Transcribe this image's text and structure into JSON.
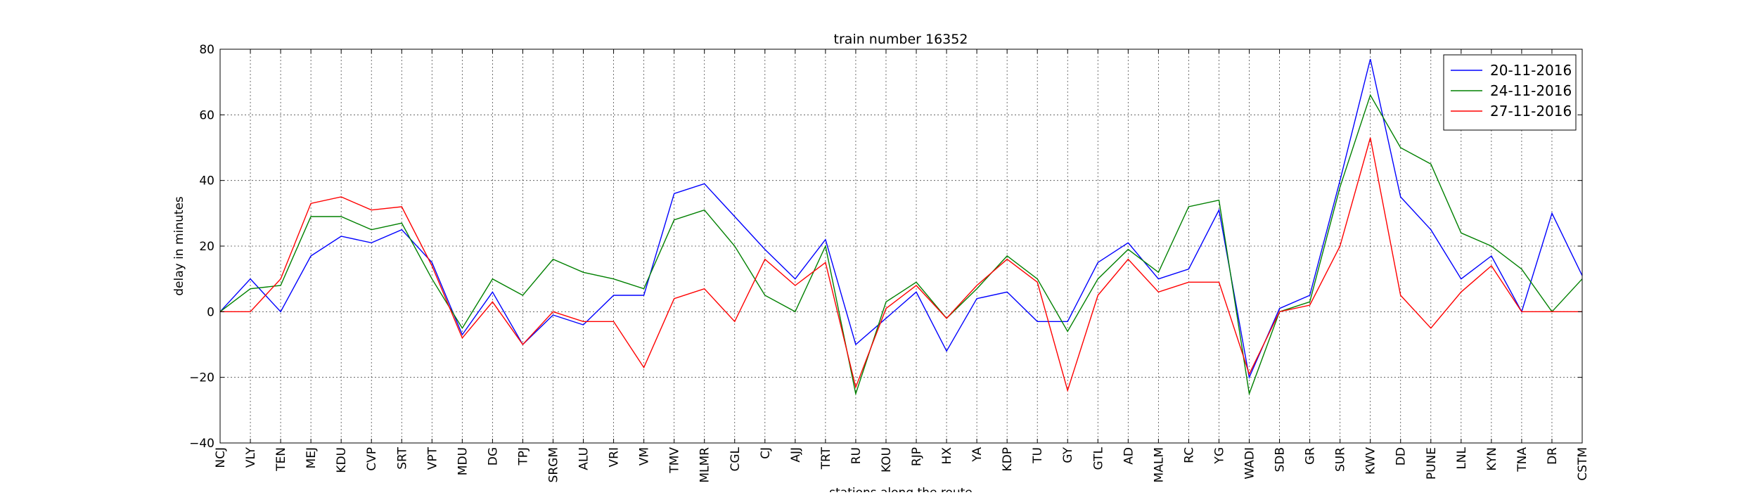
{
  "chart_data": {
    "type": "line",
    "title": "train number 16352",
    "xlabel": "stations along the route",
    "ylabel": "delay in minutes",
    "ylim": [
      -40,
      80
    ],
    "yticks": [
      -40,
      -20,
      0,
      20,
      40,
      60,
      80
    ],
    "grid": true,
    "legend_position": "top-right",
    "categories": [
      "NCJ",
      "VLY",
      "TEN",
      "MEJ",
      "KDU",
      "CVP",
      "SRT",
      "VPT",
      "MDU",
      "DG",
      "TPJ",
      "SRGM",
      "ALU",
      "VRI",
      "VM",
      "TMV",
      "MLMR",
      "CGL",
      "CJ",
      "AJJ",
      "TRT",
      "RU",
      "KOU",
      "RJP",
      "HX",
      "YA",
      "KDP",
      "TU",
      "GY",
      "GTL",
      "AD",
      "MALM",
      "RC",
      "YG",
      "WADI",
      "SDB",
      "GR",
      "SUR",
      "KWV",
      "DD",
      "PUNE",
      "LNL",
      "KYN",
      "TNA",
      "DR",
      "CSTM"
    ],
    "series": [
      {
        "name": "20-11-2016",
        "color": "#0000ff",
        "values": [
          0,
          10,
          0,
          17,
          23,
          21,
          25,
          15,
          -7,
          6,
          -10,
          -1,
          -4,
          5,
          5,
          36,
          39,
          29,
          19,
          10,
          22,
          -10,
          -2,
          6,
          -12,
          4,
          6,
          -3,
          -3,
          15,
          21,
          10,
          13,
          31,
          -20,
          1,
          5,
          40,
          77,
          35,
          25,
          10,
          17,
          0,
          30,
          11
        ]
      },
      {
        "name": "24-11-2016",
        "color": "#008000",
        "values": [
          0,
          7,
          8,
          29,
          29,
          25,
          27,
          10,
          -5,
          10,
          5,
          16,
          12,
          10,
          7,
          28,
          31,
          20,
          5,
          0,
          20,
          -25,
          3,
          9,
          -2,
          7,
          17,
          10,
          -6,
          10,
          19,
          12,
          32,
          34,
          -25,
          0,
          3,
          38,
          66,
          50,
          45,
          24,
          20,
          13,
          0,
          10
        ]
      },
      {
        "name": "27-11-2016",
        "color": "#ff0000",
        "values": [
          0,
          0,
          10,
          33,
          35,
          31,
          32,
          14,
          -8,
          3,
          -10,
          0,
          -3,
          -3,
          -17,
          4,
          7,
          -3,
          16,
          8,
          15,
          -23,
          1,
          8,
          -2,
          8,
          16,
          9,
          -24,
          5,
          16,
          6,
          9,
          9,
          -19,
          0,
          2,
          20,
          53,
          5,
          -5,
          6,
          14,
          0,
          0,
          0
        ]
      }
    ]
  }
}
